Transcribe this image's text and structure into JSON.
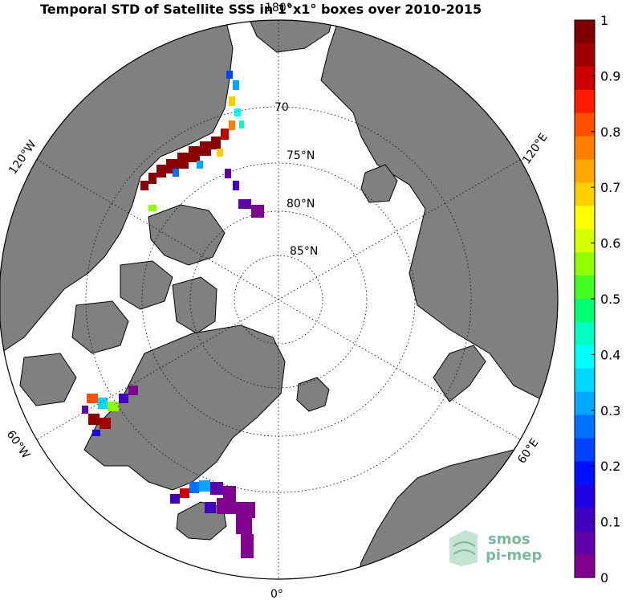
{
  "title": "Temporal STD of Satellite SSS in 1°x1° boxes over 2010-2015",
  "map": {
    "projection": "north-polar-stereographic",
    "latitude_circles": [
      "70",
      "75°N",
      "80°N",
      "85°N"
    ],
    "longitude_labels": [
      "180°",
      "120°W",
      "120°E",
      "60°W",
      "60°E",
      "0°"
    ],
    "land_color": "#808080",
    "ocean_color": "#ffffff"
  },
  "colorbar": {
    "ticks": [
      "1",
      "0.9",
      "0.8",
      "0.7",
      "0.6",
      "0.5",
      "0.4",
      "0.3",
      "0.2",
      "0.1",
      "0"
    ],
    "colors": [
      "#800000",
      "#a00000",
      "#cc0000",
      "#ff1a00",
      "#ff5000",
      "#ff8000",
      "#ffa800",
      "#ffd000",
      "#ffff00",
      "#d8ff00",
      "#90ff00",
      "#40ff20",
      "#00ff70",
      "#00ffc0",
      "#00ffff",
      "#00d8ff",
      "#00a8ff",
      "#0070ff",
      "#0040ff",
      "#0010ff",
      "#2000e0",
      "#4000c0",
      "#6000a8",
      "#800090"
    ]
  },
  "logo": {
    "line1": "smos",
    "line2": "pi-mep"
  }
}
